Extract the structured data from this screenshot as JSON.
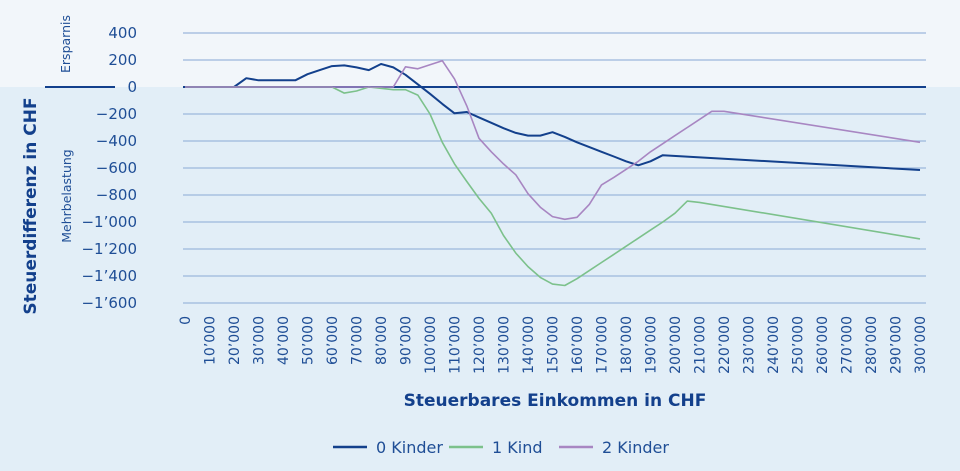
{
  "chart_data": {
    "type": "line",
    "title": "",
    "xlabel": "Steuerbares Einkommen in CHF",
    "ylabel": "Steuerdifferenz in CHF",
    "region_labels": {
      "positive": "Ersparnis",
      "negative": "Mehrbelastung"
    },
    "ylim": [
      -1600,
      400
    ],
    "xlim": [
      0,
      300000
    ],
    "y_ticks": [
      400,
      200,
      0,
      -200,
      -400,
      -600,
      -800,
      -1000,
      -1200,
      -1400,
      -1600
    ],
    "y_tick_labels": [
      "400",
      "200",
      "0",
      "−200",
      "−400",
      "−600",
      "−800",
      "−1’000",
      "−1’200",
      "−1’400",
      "−1’600"
    ],
    "x_ticks": [
      0,
      10000,
      20000,
      30000,
      40000,
      50000,
      60000,
      70000,
      80000,
      90000,
      100000,
      110000,
      120000,
      130000,
      140000,
      150000,
      160000,
      170000,
      180000,
      190000,
      200000,
      210000,
      220000,
      230000,
      240000,
      250000,
      260000,
      270000,
      280000,
      290000,
      300000
    ],
    "x_tick_labels": [
      "0",
      "10’000",
      "20’000",
      "30’000",
      "40’000",
      "50’000",
      "60’000",
      "70’000",
      "80’000",
      "90’000",
      "100’000",
      "110’000",
      "120’000",
      "130’000",
      "140’000",
      "150’000",
      "160’000",
      "170’000",
      "180’000",
      "190’000",
      "200’000",
      "210’000",
      "220’000",
      "230’000",
      "240’000",
      "250’000",
      "260’000",
      "270’000",
      "280’000",
      "290’000",
      "300’000"
    ],
    "grid": true,
    "legend_position": "bottom",
    "series": [
      {
        "name": "0 Kinder",
        "color": "#13408c",
        "x": [
          0,
          20000,
          25000,
          30000,
          40000,
          45000,
          50000,
          55000,
          60000,
          65000,
          70000,
          75000,
          80000,
          85000,
          90000,
          95000,
          100000,
          105000,
          110000,
          115000,
          120000,
          125000,
          130000,
          135000,
          140000,
          145000,
          150000,
          155000,
          160000,
          165000,
          170000,
          175000,
          180000,
          185000,
          190000,
          195000,
          300000
        ],
        "values": [
          0,
          0,
          65,
          50,
          50,
          50,
          95,
          125,
          155,
          160,
          145,
          125,
          170,
          145,
          90,
          20,
          -50,
          -125,
          -195,
          -185,
          -225,
          -265,
          -305,
          -340,
          -360,
          -360,
          -335,
          -370,
          -410,
          -445,
          -480,
          -515,
          -550,
          -580,
          -550,
          -505,
          -615
        ]
      },
      {
        "name": "1 Kind",
        "color": "#7cc18b",
        "x": [
          0,
          60000,
          65000,
          70000,
          75000,
          80000,
          85000,
          90000,
          95000,
          100000,
          105000,
          110000,
          115000,
          120000,
          125000,
          130000,
          135000,
          140000,
          145000,
          150000,
          155000,
          160000,
          165000,
          170000,
          175000,
          180000,
          185000,
          190000,
          195000,
          200000,
          205000,
          210000,
          300000
        ],
        "values": [
          0,
          0,
          -45,
          -30,
          0,
          -10,
          -20,
          -20,
          -60,
          -200,
          -410,
          -570,
          -700,
          -825,
          -935,
          -1100,
          -1230,
          -1330,
          -1410,
          -1460,
          -1470,
          -1420,
          -1360,
          -1300,
          -1240,
          -1180,
          -1120,
          -1060,
          -1000,
          -935,
          -845,
          -855,
          -1125
        ]
      },
      {
        "name": "2 Kinder",
        "color": "#a886c2",
        "x": [
          0,
          80000,
          85000,
          90000,
          95000,
          100000,
          105000,
          110000,
          115000,
          120000,
          125000,
          130000,
          135000,
          140000,
          145000,
          150000,
          155000,
          160000,
          165000,
          170000,
          175000,
          180000,
          185000,
          190000,
          195000,
          200000,
          205000,
          210000,
          215000,
          220000,
          300000
        ],
        "values": [
          0,
          0,
          0,
          150,
          135,
          165,
          195,
          60,
          -140,
          -380,
          -480,
          -570,
          -650,
          -790,
          -890,
          -960,
          -980,
          -965,
          -870,
          -725,
          -670,
          -610,
          -550,
          -480,
          -420,
          -360,
          -300,
          -240,
          -180,
          -180,
          -410
        ]
      }
    ]
  }
}
